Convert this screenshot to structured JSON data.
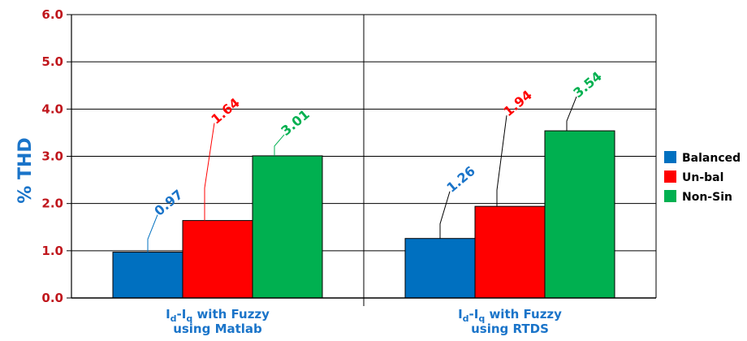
{
  "chart_data": {
    "type": "bar",
    "ylabel": "% THD",
    "ylim": [
      0,
      6
    ],
    "y_ticks": [
      "0.0",
      "1.0",
      "2.0",
      "3.0",
      "4.0",
      "5.0",
      "6.0"
    ],
    "grid": true,
    "legend_position": "right",
    "categories": [
      {
        "main1": "I",
        "sub1": "d",
        "mid": "-I",
        "sub2": "q",
        "rest": " with Fuzzy",
        "line2": "using Matlab"
      },
      {
        "main1": "I",
        "sub1": "d",
        "mid": "-I",
        "sub2": "q",
        "rest": " with Fuzzy",
        "line2": "using RTDS"
      }
    ],
    "series": [
      {
        "name": "Balanced",
        "color": "#0070c0",
        "label_color": "#1a74c9",
        "values": [
          0.97,
          1.26
        ],
        "labels": [
          "0.97",
          "1.26"
        ]
      },
      {
        "name": "Un-bal",
        "color": "#ff0000",
        "label_color": "#ff0000",
        "values": [
          1.64,
          1.94
        ],
        "labels": [
          "1.64",
          "1.94"
        ]
      },
      {
        "name": "Non-Sin",
        "color": "#00b050",
        "label_color": "#00b050",
        "values": [
          3.01,
          3.54
        ],
        "labels": [
          "3.01",
          "3.54"
        ]
      }
    ]
  }
}
